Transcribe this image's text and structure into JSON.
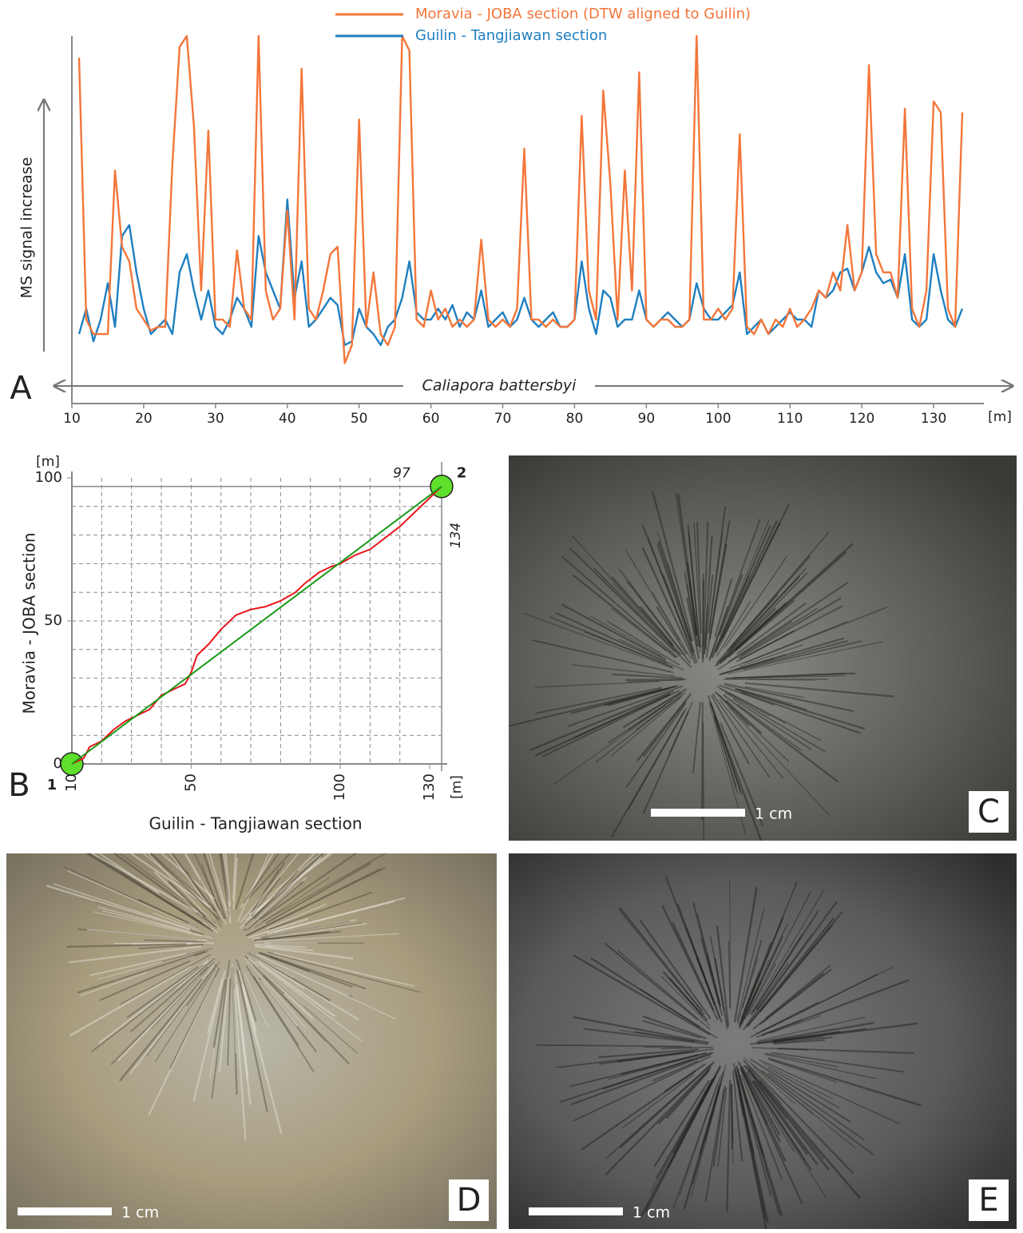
{
  "chart_data": [
    {
      "type": "line",
      "panel": "A",
      "ylabel": "MS signal increase",
      "xlabel": "[m]",
      "annotation": "Caliapora battersbyi",
      "xlim": [
        10,
        137
      ],
      "xticks": [
        10,
        20,
        30,
        40,
        50,
        60,
        70,
        80,
        90,
        100,
        110,
        120,
        130
      ],
      "ylim": [
        0,
        100
      ],
      "x": [
        11,
        12,
        13,
        14,
        15,
        16,
        17,
        18,
        19,
        20,
        21,
        22,
        23,
        24,
        25,
        26,
        27,
        28,
        29,
        30,
        31,
        32,
        33,
        34,
        35,
        36,
        37,
        38,
        39,
        40,
        41,
        42,
        43,
        44,
        45,
        46,
        47,
        48,
        49,
        50,
        51,
        52,
        53,
        54,
        55,
        56,
        57,
        58,
        59,
        60,
        61,
        62,
        63,
        64,
        65,
        66,
        67,
        68,
        69,
        70,
        71,
        72,
        73,
        74,
        75,
        76,
        77,
        78,
        79,
        80,
        81,
        82,
        83,
        84,
        85,
        86,
        87,
        88,
        89,
        90,
        91,
        92,
        93,
        94,
        95,
        96,
        97,
        98,
        99,
        100,
        101,
        102,
        103,
        104,
        105,
        106,
        107,
        108,
        109,
        110,
        111,
        112,
        113,
        114,
        115,
        116,
        117,
        118,
        119,
        120,
        121,
        122,
        123,
        124,
        125,
        126,
        127,
        128,
        129,
        130,
        131,
        132,
        133,
        134
      ],
      "series": [
        {
          "name": "Guilin - Tangjiawan section",
          "color": "#1f7fc0",
          "values": [
            18,
            25,
            16,
            22,
            32,
            20,
            45,
            48,
            35,
            25,
            18,
            20,
            22,
            18,
            35,
            40,
            30,
            22,
            30,
            20,
            18,
            22,
            28,
            25,
            20,
            45,
            35,
            30,
            25,
            55,
            28,
            38,
            20,
            22,
            25,
            28,
            26,
            15,
            16,
            25,
            20,
            18,
            15,
            20,
            22,
            28,
            38,
            24,
            22,
            22,
            25,
            22,
            26,
            20,
            24,
            22,
            30,
            20,
            22,
            24,
            20,
            22,
            28,
            22,
            20,
            22,
            24,
            20,
            20,
            22,
            38,
            25,
            18,
            30,
            28,
            20,
            22,
            22,
            30,
            22,
            20,
            22,
            24,
            22,
            20,
            22,
            32,
            25,
            22,
            22,
            24,
            26,
            35,
            18,
            20,
            22,
            18,
            20,
            22,
            24,
            22,
            22,
            20,
            30,
            28,
            30,
            35,
            36,
            30,
            35,
            42,
            35,
            32,
            33,
            28,
            40,
            22,
            20,
            22,
            40,
            30,
            22,
            20,
            25
          ]
        },
        {
          "name": "Moravia - JOBA section (DTW aligned to Guilin)",
          "color": "#f4763a",
          "values": [
            94,
            22,
            18,
            18,
            18,
            63,
            42,
            38,
            25,
            22,
            19,
            20,
            20,
            65,
            97,
            100,
            75,
            30,
            74,
            22,
            22,
            20,
            41,
            25,
            22,
            100,
            30,
            22,
            25,
            52,
            22,
            91,
            25,
            22,
            30,
            40,
            42,
            10,
            15,
            77,
            20,
            35,
            18,
            15,
            20,
            100,
            96,
            22,
            20,
            30,
            22,
            25,
            20,
            22,
            20,
            22,
            44,
            22,
            20,
            22,
            20,
            25,
            69,
            22,
            22,
            20,
            22,
            20,
            20,
            22,
            78,
            30,
            22,
            85,
            59,
            22,
            63,
            30,
            90,
            22,
            20,
            22,
            22,
            20,
            20,
            22,
            100,
            22,
            22,
            25,
            22,
            25,
            73,
            20,
            18,
            22,
            18,
            22,
            20,
            25,
            20,
            22,
            25,
            30,
            28,
            35,
            30,
            48,
            30,
            35,
            92,
            40,
            35,
            35,
            28,
            80,
            25,
            20,
            30,
            82,
            79,
            25,
            20,
            79
          ]
        }
      ]
    },
    {
      "type": "line",
      "panel": "B",
      "xlabel": "Guilin - Tangjiawan section",
      "ylabel": "Moravia - JOBA section",
      "xunit": "[m]",
      "yunit": "[m]",
      "endpoint_labels": [
        "1",
        "2"
      ],
      "ref_x": 134,
      "ref_y": 97,
      "xlim": [
        10,
        134
      ],
      "xticks": [
        10,
        50,
        100,
        130
      ],
      "ylim": [
        0,
        100
      ],
      "yticks": [
        0,
        50,
        100
      ],
      "xgrid": [
        20,
        30,
        40,
        50,
        60,
        70,
        80,
        90,
        100,
        110,
        120
      ],
      "ygrid": [
        10,
        20,
        30,
        40,
        50,
        60,
        70,
        80,
        90
      ],
      "series": [
        {
          "color": "#e8151b",
          "x": [
            10,
            14,
            16,
            20,
            24,
            28,
            32,
            36,
            40,
            44,
            48,
            50,
            52,
            56,
            60,
            65,
            70,
            75,
            80,
            85,
            88,
            93,
            97,
            100,
            105,
            110,
            115,
            120,
            125,
            130,
            134
          ],
          "values": [
            0,
            2,
            6,
            8,
            12,
            15,
            17,
            19,
            24,
            26,
            28,
            32,
            38,
            42,
            47,
            52,
            54,
            55,
            57,
            60,
            63,
            67,
            69,
            70,
            73,
            75,
            79,
            83,
            88,
            93,
            97
          ]
        },
        {
          "color": "#1a9a1a",
          "x": [
            10,
            134
          ],
          "values": [
            0,
            97
          ]
        }
      ]
    }
  ],
  "photos": [
    {
      "panel": "C",
      "scale_bar": "1 cm"
    },
    {
      "panel": "D",
      "scale_bar": "1 cm"
    },
    {
      "panel": "E",
      "scale_bar": "1 cm"
    }
  ]
}
